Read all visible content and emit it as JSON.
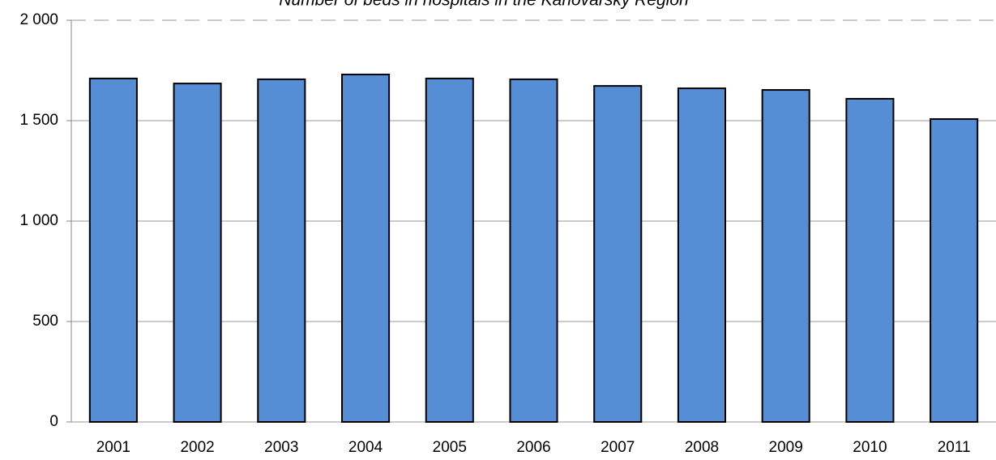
{
  "chart_data": {
    "type": "bar",
    "title": "Number of beds in hospitals in the Karlovarský Region",
    "categories": [
      "2001",
      "2002",
      "2003",
      "2004",
      "2005",
      "2006",
      "2007",
      "2008",
      "2009",
      "2010",
      "2011"
    ],
    "values": [
      1710,
      1685,
      1706,
      1730,
      1710,
      1706,
      1673,
      1661,
      1653,
      1609,
      1508
    ],
    "color": "#558ed5",
    "ylim": [
      0,
      2000
    ],
    "yticks": [
      0,
      500,
      {
        "value": 1000,
        "label": "1 000"
      },
      {
        "value": 1500,
        "label": "1 500"
      },
      {
        "value": 2000,
        "label": "2 000"
      }
    ],
    "grid": true
  }
}
